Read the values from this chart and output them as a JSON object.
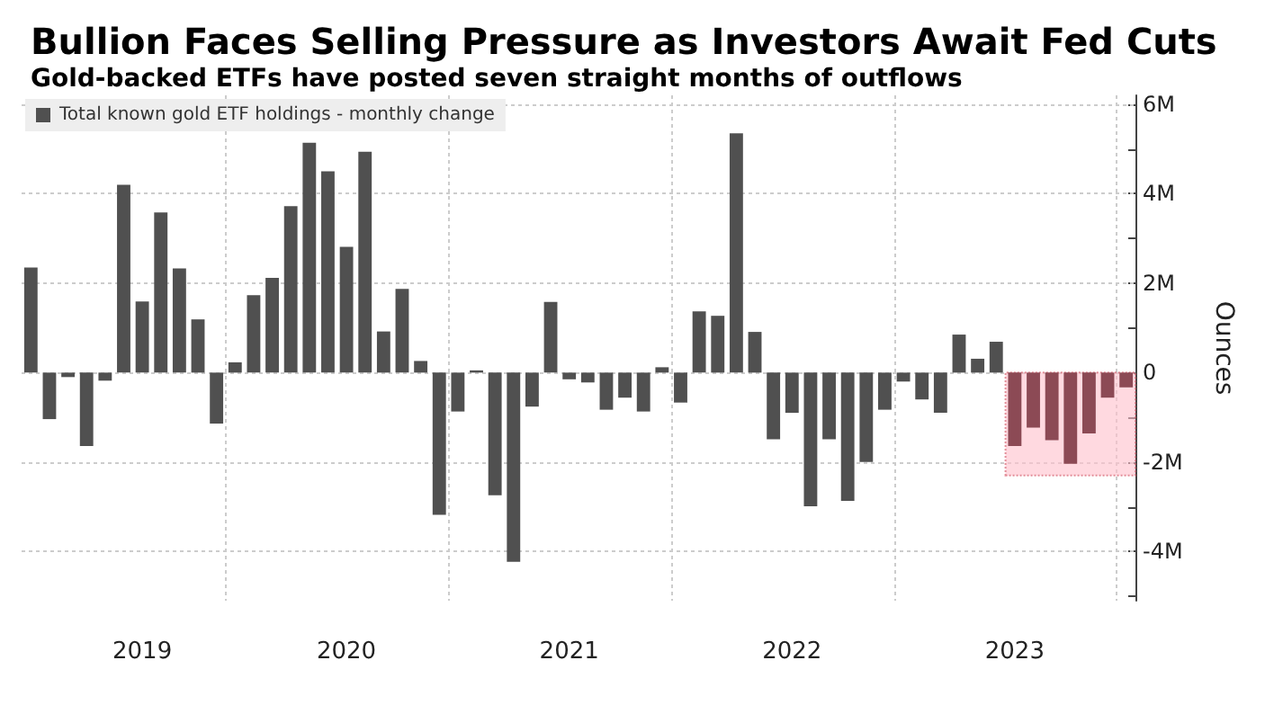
{
  "chart_data": {
    "type": "bar",
    "title": "Bullion Faces Selling Pressure as Investors Await Fed Cuts",
    "subtitle": "Gold-backed ETFs have posted seven straight months of outflows",
    "ylabel": "Ounces",
    "categories": [
      null,
      null,
      null,
      null,
      null,
      null,
      "2019",
      null,
      null,
      null,
      null,
      null,
      null,
      null,
      null,
      null,
      null,
      "2020",
      null,
      null,
      null,
      null,
      null,
      null,
      null,
      null,
      null,
      null,
      null,
      "2021",
      null,
      null,
      null,
      null,
      null,
      null,
      null,
      null,
      null,
      null,
      null,
      "2022",
      null,
      null,
      null,
      null,
      null,
      null,
      null,
      null,
      null,
      null,
      null,
      "2023",
      null,
      null,
      null,
      null,
      null,
      null
    ],
    "series": [
      {
        "name": "Total known gold ETF holdings - monthly change",
        "color": "#505050",
        "values": [
          2.35,
          -1.04,
          -0.1,
          -1.64,
          -0.18,
          4.2,
          1.59,
          3.58,
          2.33,
          1.19,
          -1.14,
          0.23,
          1.73,
          2.12,
          3.72,
          5.14,
          4.5,
          2.81,
          4.94,
          0.92,
          1.87,
          0.26,
          -3.18,
          -0.87,
          0.05,
          -2.74,
          -4.23,
          -0.76,
          1.58,
          -0.15,
          -0.22,
          -0.83,
          -0.56,
          -0.87,
          0.12,
          -0.67,
          1.37,
          1.27,
          5.35,
          0.91,
          -1.49,
          -0.9,
          -2.99,
          -1.49,
          -2.87,
          -2.0,
          -0.83,
          -0.2,
          -0.6,
          -0.9,
          0.85,
          0.31,
          0.69,
          -1.64,
          -1.23,
          -1.51,
          -2.04,
          -1.36,
          -0.56,
          -0.33
        ],
        "colors": [
          "#505050",
          "#505050",
          "#505050",
          "#505050",
          "#505050",
          "#505050",
          "#505050",
          "#505050",
          "#505050",
          "#505050",
          "#505050",
          "#505050",
          "#505050",
          "#505050",
          "#505050",
          "#505050",
          "#505050",
          "#505050",
          "#505050",
          "#505050",
          "#505050",
          "#505050",
          "#505050",
          "#505050",
          "#505050",
          "#505050",
          "#505050",
          "#505050",
          "#505050",
          "#505050",
          "#505050",
          "#505050",
          "#505050",
          "#505050",
          "#505050",
          "#505050",
          "#505050",
          "#505050",
          "#505050",
          "#505050",
          "#505050",
          "#505050",
          "#505050",
          "#505050",
          "#505050",
          "#505050",
          "#505050",
          "#505050",
          "#505050",
          "#505050",
          "#505050",
          "#505050",
          "#505050",
          "#8c4a55",
          "#8c4a55",
          "#8c4a55",
          "#8c4a55",
          "#8c4a55",
          "#8c4a55",
          "#8c4a55"
        ]
      }
    ],
    "ylim": [
      -5.1,
      6.2
    ],
    "yticks": [
      {
        "value": -5,
        "label": null
      },
      {
        "value": -4,
        "label": "-4M"
      },
      {
        "value": -3,
        "label": null
      },
      {
        "value": -2,
        "label": "-2M"
      },
      {
        "value": -1,
        "label": null
      },
      0,
      {
        "value": 1,
        "label": null
      },
      {
        "value": 2,
        "label": "2M"
      },
      {
        "value": 3,
        "label": null
      },
      {
        "value": 4,
        "label": "4M"
      },
      {
        "value": 5,
        "label": null
      },
      {
        "value": 6,
        "label": "6M"
      }
    ],
    "bands": [
      {
        "axis": "y",
        "from": -2.3,
        "to": 0,
        "color": "#ffc0cb"
      }
    ],
    "grid": true,
    "legend": "top left"
  }
}
